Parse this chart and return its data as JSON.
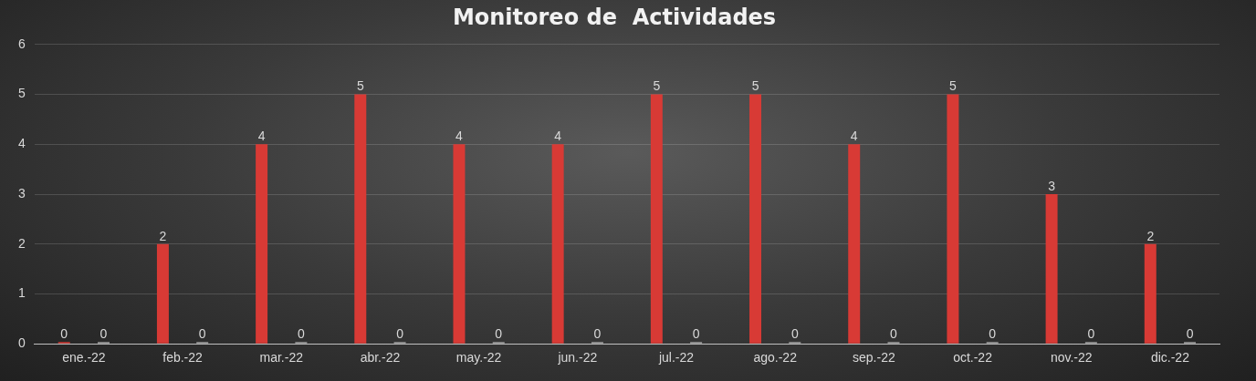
{
  "chart_data": {
    "type": "bar",
    "title": "Monitoreo de  Actividades",
    "categories": [
      "ene.-22",
      "feb.-22",
      "mar.-22",
      "abr.-22",
      "may.-22",
      "jun.-22",
      "jul.-22",
      "ago.-22",
      "sep.-22",
      "oct.-22",
      "nov.-22",
      "dic.-22"
    ],
    "series": [
      {
        "color": "#d83a35",
        "values": [
          0,
          2,
          4,
          5,
          4,
          4,
          5,
          5,
          4,
          5,
          3,
          2
        ]
      },
      {
        "color": "#a5a5a5",
        "values": [
          0,
          0,
          0,
          0,
          0,
          0,
          0,
          0,
          0,
          0,
          0,
          0
        ]
      }
    ],
    "ylim": [
      0,
      6
    ],
    "yticks": [
      0,
      1,
      2,
      3,
      4,
      5,
      6
    ],
    "grid": "y",
    "legend": false,
    "data_labels": true
  }
}
